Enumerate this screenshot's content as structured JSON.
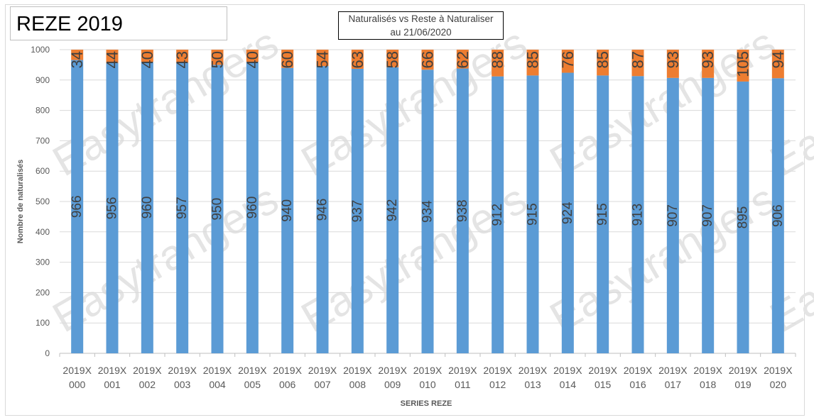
{
  "header": {
    "title": "REZE 2019",
    "subtitle_line1": "Naturalisés vs Reste à Naturaliser",
    "subtitle_line2": "au 21/06/2020"
  },
  "watermark": "Easytrangers",
  "chart_data": {
    "type": "bar",
    "stacked": true,
    "title": "Naturalisés vs Reste à Naturaliser au 21/06/2020",
    "xlabel": "SERIES REZE",
    "ylabel": "Nombre de naturalisés",
    "ylim": [
      0,
      1000
    ],
    "yticks": [
      0,
      100,
      200,
      300,
      400,
      500,
      600,
      700,
      800,
      900,
      1000
    ],
    "grid": true,
    "categories": [
      [
        "2019X",
        "000"
      ],
      [
        "2019X",
        "001"
      ],
      [
        "2019X",
        "002"
      ],
      [
        "2019X",
        "003"
      ],
      [
        "2019X",
        "004"
      ],
      [
        "2019X",
        "005"
      ],
      [
        "2019X",
        "006"
      ],
      [
        "2019X",
        "007"
      ],
      [
        "2019X",
        "008"
      ],
      [
        "2019X",
        "009"
      ],
      [
        "2019X",
        "010"
      ],
      [
        "2019X",
        "011"
      ],
      [
        "2019X",
        "012"
      ],
      [
        "2019X",
        "013"
      ],
      [
        "2019X",
        "014"
      ],
      [
        "2019X",
        "015"
      ],
      [
        "2019X",
        "016"
      ],
      [
        "2019X",
        "017"
      ],
      [
        "2019X",
        "018"
      ],
      [
        "2019X",
        "019"
      ],
      [
        "2019X",
        "020"
      ]
    ],
    "series": [
      {
        "color": "#5B9BD5",
        "values": [
          966,
          956,
          960,
          957,
          950,
          960,
          940,
          946,
          937,
          942,
          934,
          938,
          912,
          915,
          924,
          915,
          913,
          907,
          907,
          895,
          906
        ]
      },
      {
        "color": "#ED7D31",
        "values": [
          34,
          44,
          40,
          43,
          50,
          40,
          60,
          54,
          63,
          58,
          66,
          62,
          88,
          85,
          76,
          85,
          87,
          93,
          93,
          105,
          94
        ]
      }
    ]
  }
}
